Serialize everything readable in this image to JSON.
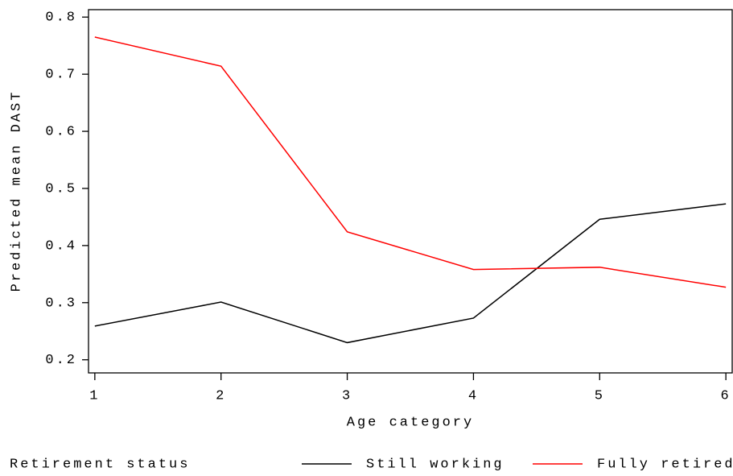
{
  "chart_data": {
    "type": "line",
    "x_label": "Age category",
    "y_label": "Predicted mean DAST",
    "x": [
      1,
      2,
      3,
      4,
      5,
      6
    ],
    "xlim": [
      0.95,
      6.05
    ],
    "xticks": [
      1,
      2,
      3,
      4,
      5,
      6
    ],
    "ylim": [
      0.177,
      0.813
    ],
    "yticks": [
      0.2,
      0.3,
      0.4,
      0.5,
      0.6,
      0.7,
      0.8
    ],
    "legend_title": "Retirement status",
    "legend_position": "bottom",
    "series": [
      {
        "name": "Still working",
        "color": "#000000",
        "values": [
          0.259,
          0.301,
          0.23,
          0.273,
          0.446,
          0.473
        ]
      },
      {
        "name": "Fully retired",
        "color": "#ff0000",
        "values": [
          0.765,
          0.714,
          0.424,
          0.358,
          0.362,
          0.327
        ]
      }
    ]
  }
}
